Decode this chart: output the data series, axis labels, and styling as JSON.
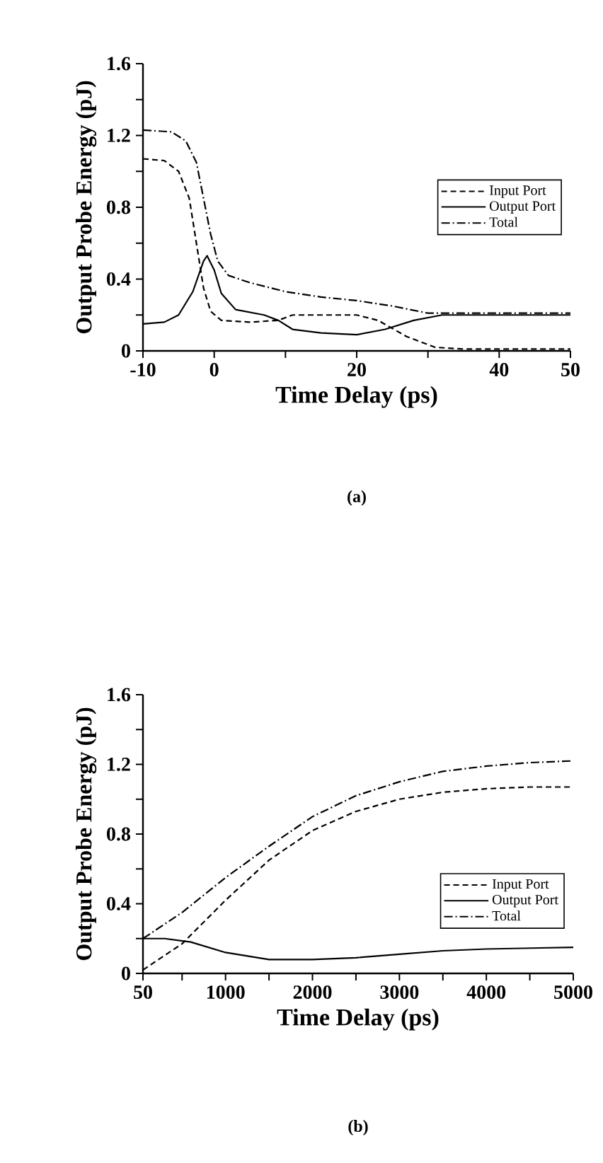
{
  "chart_data": [
    {
      "type": "line",
      "xlabel": "Time Delay (ps)",
      "ylabel": "Output Probe Energy (pJ)",
      "annotations": [
        "(a)"
      ],
      "legend": "right",
      "xlim": [
        -10,
        50
      ],
      "ylim": [
        0,
        1.6
      ],
      "xticks": [
        -10,
        0,
        {
          "value": 10,
          "label": null
        },
        20,
        {
          "value": 30,
          "label": null
        },
        40,
        50
      ],
      "yticks": [
        0,
        {
          "value": 0.2,
          "label": null
        },
        0.4,
        {
          "value": 0.6,
          "label": null
        },
        0.8,
        {
          "value": 1.0,
          "label": null
        },
        1.2,
        {
          "value": 1.4,
          "label": null
        },
        1.6
      ],
      "series": [
        {
          "name": "Input Port",
          "color": "#000000",
          "line_style": "dashed",
          "x": [
            -10,
            -7,
            -5,
            -3.5,
            -2.5,
            -1.5,
            -0.5,
            1,
            5,
            9,
            11,
            20,
            23,
            27,
            31,
            35,
            50
          ],
          "values": [
            1.07,
            1.06,
            1.0,
            0.85,
            0.6,
            0.35,
            0.22,
            0.17,
            0.16,
            0.17,
            0.2,
            0.2,
            0.17,
            0.08,
            0.02,
            0.01,
            0.01
          ]
        },
        {
          "name": "Output Port",
          "color": "#000000",
          "line_style": "solid",
          "x": [
            -10,
            -7,
            -5,
            -3,
            -1.5,
            -1,
            0,
            1,
            3,
            7,
            9,
            11,
            15,
            20,
            24,
            28,
            32,
            50
          ],
          "values": [
            0.15,
            0.16,
            0.2,
            0.33,
            0.5,
            0.53,
            0.45,
            0.32,
            0.23,
            0.2,
            0.17,
            0.12,
            0.1,
            0.09,
            0.12,
            0.17,
            0.2,
            0.2
          ]
        },
        {
          "name": "Total",
          "color": "#000000",
          "line_style": "dashdot",
          "x": [
            -10,
            -6,
            -4,
            -2.5,
            -1.5,
            -0.5,
            0.5,
            2,
            5,
            10,
            15,
            20,
            25,
            30,
            35,
            50
          ],
          "values": [
            1.23,
            1.22,
            1.17,
            1.05,
            0.85,
            0.65,
            0.5,
            0.42,
            0.38,
            0.33,
            0.3,
            0.28,
            0.25,
            0.21,
            0.21,
            0.21
          ]
        }
      ]
    },
    {
      "type": "line",
      "xlabel": "Time Delay (ps)",
      "ylabel": "Output Probe Energy (pJ)",
      "annotations": [
        "(b)"
      ],
      "legend": "bottom right",
      "xlim": [
        50,
        5000
      ],
      "ylim": [
        0,
        1.6
      ],
      "xticks": [
        50,
        {
          "value": 500,
          "label": null
        },
        1000,
        {
          "value": 1500,
          "label": null
        },
        2000,
        {
          "value": 2500,
          "label": null
        },
        3000,
        {
          "value": 3500,
          "label": null
        },
        4000,
        {
          "value": 4500,
          "label": null
        },
        5000
      ],
      "yticks": [
        0,
        {
          "value": 0.2,
          "label": null
        },
        0.4,
        {
          "value": 0.6,
          "label": null
        },
        0.8,
        {
          "value": 1.0,
          "label": null
        },
        1.2,
        {
          "value": 1.4,
          "label": null
        },
        1.6
      ],
      "series": [
        {
          "name": "Input Port",
          "color": "#000000",
          "line_style": "dashed",
          "x": [
            50,
            500,
            1000,
            1500,
            2000,
            2500,
            3000,
            3500,
            4000,
            4500,
            5000
          ],
          "values": [
            0.02,
            0.17,
            0.42,
            0.65,
            0.82,
            0.93,
            1.0,
            1.04,
            1.06,
            1.07,
            1.07
          ]
        },
        {
          "name": "Output Port",
          "color": "#000000",
          "line_style": "solid",
          "x": [
            50,
            300,
            600,
            1000,
            1500,
            2000,
            2500,
            3000,
            3500,
            4000,
            5000
          ],
          "values": [
            0.2,
            0.2,
            0.18,
            0.12,
            0.08,
            0.08,
            0.09,
            0.11,
            0.13,
            0.14,
            0.15
          ]
        },
        {
          "name": "Total",
          "color": "#000000",
          "line_style": "dashdot",
          "x": [
            50,
            500,
            1000,
            1500,
            2000,
            2500,
            3000,
            3500,
            4000,
            4500,
            5000
          ],
          "values": [
            0.2,
            0.35,
            0.55,
            0.73,
            0.9,
            1.02,
            1.1,
            1.16,
            1.19,
            1.21,
            1.22
          ]
        }
      ]
    }
  ]
}
